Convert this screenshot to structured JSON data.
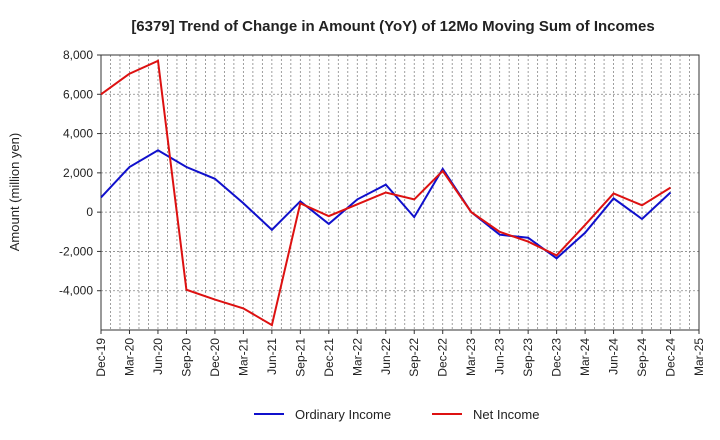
{
  "chart_data": {
    "type": "line",
    "title": "[6379]  Trend of Change in Amount (YoY) of 12Mo Moving Sum of Incomes",
    "xlabel": "",
    "ylabel": "Amount (million yen)",
    "ylim": [
      -6000,
      8000
    ],
    "yticks": [
      8000,
      6000,
      4000,
      2000,
      0,
      -2000,
      -4000
    ],
    "ytick_labels": [
      "8,000",
      "6,000",
      "4,000",
      "2,000",
      "0",
      "-2,000",
      "-4,000"
    ],
    "categories": [
      "Dec-19",
      "Mar-20",
      "Jun-20",
      "Sep-20",
      "Dec-20",
      "Mar-21",
      "Jun-21",
      "Sep-21",
      "Dec-21",
      "Mar-22",
      "Jun-22",
      "Sep-22",
      "Dec-22",
      "Mar-23",
      "Jun-23",
      "Sep-23",
      "Dec-23",
      "Mar-24",
      "Jun-24",
      "Sep-24",
      "Dec-24",
      "Mar-25"
    ],
    "grid": true,
    "legend_position": "bottom-center",
    "series": [
      {
        "name": "Ordinary Income",
        "color": "#1010cc",
        "values": [
          750,
          2300,
          3150,
          2300,
          1700,
          450,
          -900,
          550,
          -600,
          650,
          1400,
          -250,
          2200,
          0,
          -1150,
          -1300,
          -2350,
          -1050,
          700,
          -350,
          1000,
          null
        ]
      },
      {
        "name": "Net Income",
        "color": "#dd1111",
        "values": [
          6000,
          7050,
          7700,
          -3950,
          -4450,
          -4900,
          -5750,
          450,
          -200,
          400,
          1000,
          650,
          2100,
          0,
          -1000,
          -1500,
          -2200,
          -650,
          950,
          350,
          1250,
          null
        ]
      }
    ]
  }
}
